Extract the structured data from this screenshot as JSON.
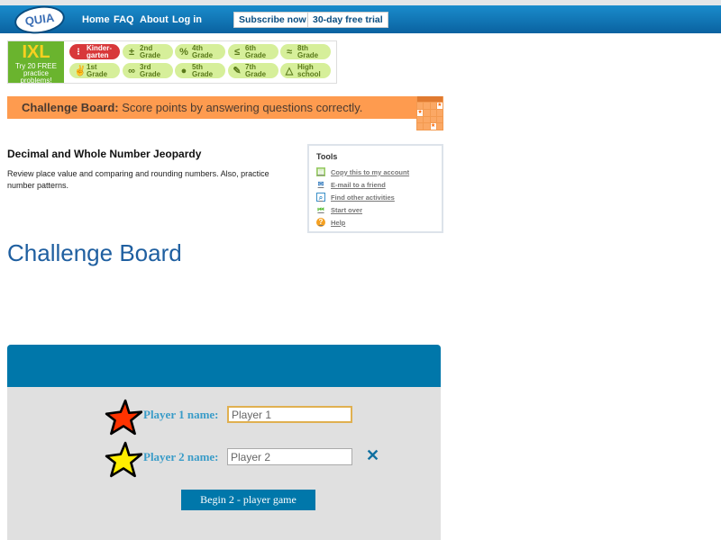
{
  "header": {
    "logo": "QUIA",
    "nav": [
      "Home",
      "FAQ",
      "About",
      "Log in"
    ],
    "subscribe": "Subscribe now",
    "trial": "30-day free trial"
  },
  "ixl": {
    "logo": "IXL",
    "promo": "Try 20 FREE practice problems!",
    "grades": [
      {
        "l1": "Kinder-",
        "l2": "garten",
        "icon": "⁝"
      },
      {
        "l1": "2nd",
        "l2": "Grade",
        "icon": "±"
      },
      {
        "l1": "4th",
        "l2": "Grade",
        "icon": "%"
      },
      {
        "l1": "6th",
        "l2": "Grade",
        "icon": "≤"
      },
      {
        "l1": "8th",
        "l2": "Grade",
        "icon": "≈"
      },
      {
        "l1": "1st",
        "l2": "Grade",
        "icon": "✌"
      },
      {
        "l1": "3rd",
        "l2": "Grade",
        "icon": "∞"
      },
      {
        "l1": "5th",
        "l2": "Grade",
        "icon": "●"
      },
      {
        "l1": "7th",
        "l2": "Grade",
        "icon": "✎"
      },
      {
        "l1": "High",
        "l2": "school",
        "icon": "△"
      }
    ]
  },
  "banner": {
    "bold": "Challenge Board:",
    "text": " Score points by answering questions correctly."
  },
  "activity": {
    "title": "Decimal and Whole Number Jeopardy",
    "description": "Review place value and comparing and rounding numbers. Also, practice number patterns."
  },
  "tools": {
    "heading": "Tools",
    "items": [
      {
        "label": "Copy this to my account",
        "icon": "copy-icon"
      },
      {
        "label": "E-mail to a friend",
        "icon": "email-icon"
      },
      {
        "label": "Find other activities",
        "icon": "search-icon"
      },
      {
        "label": "Start over",
        "icon": "rewind-icon"
      },
      {
        "label": "Help",
        "icon": "help-icon"
      }
    ]
  },
  "heading": "Challenge Board",
  "game": {
    "p1_label": "Player 1 name:",
    "p1_value": "Player 1",
    "p2_label": "Player 2 name:",
    "p2_value": "Player 2",
    "remove": "✕",
    "begin": "Begin 2 - player game",
    "colors": {
      "star1": "#ff3300",
      "star2": "#ffee00",
      "accent": "#0077aa"
    }
  }
}
